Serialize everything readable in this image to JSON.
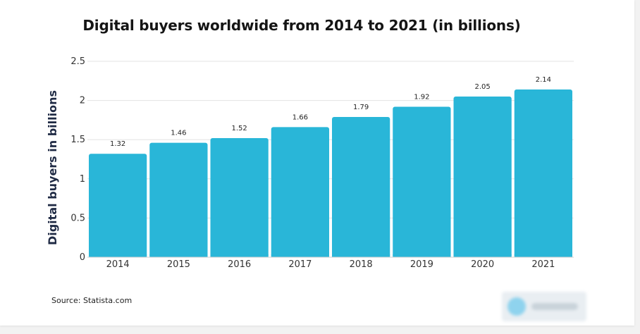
{
  "chart_data": {
    "type": "bar",
    "title": "Digital buyers worldwide from 2014 to 2021 (in billions)",
    "xlabel": "",
    "ylabel": "Digital buyers in billions",
    "categories": [
      "2014",
      "2015",
      "2016",
      "2017",
      "2018",
      "2019",
      "2020",
      "2021"
    ],
    "values": [
      1.32,
      1.46,
      1.52,
      1.66,
      1.79,
      1.92,
      2.05,
      2.14
    ],
    "data_labels": [
      "1.32",
      "1.46",
      "1.52",
      "1.66",
      "1.79",
      "1.92",
      "2.05",
      "2.14"
    ],
    "ylim": [
      0,
      2.5
    ],
    "yticks": [
      0,
      0.5,
      1,
      1.5,
      2,
      2.5
    ],
    "ytick_labels": [
      "0",
      "0.5",
      "1",
      "1.5",
      "2",
      "2.5"
    ],
    "grid": true,
    "bar_color": "#29b6d8"
  },
  "source": "Source: Statista.com"
}
